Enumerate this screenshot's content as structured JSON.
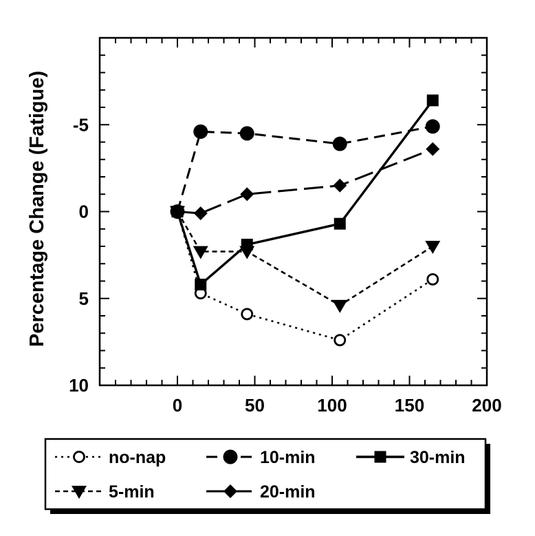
{
  "chart_data": {
    "type": "line",
    "title": "",
    "xlabel": "",
    "ylabel": "Percentage Change (Fatigue)",
    "xlim": [
      -45,
      200
    ],
    "ylim": [
      10,
      -10
    ],
    "y_inverted": true,
    "grid": false,
    "legend_position": "bottom",
    "x_ticks": [
      0,
      50,
      100,
      150,
      200
    ],
    "x_tick_labels": [
      "0",
      "50",
      "100",
      "150",
      "200"
    ],
    "y_ticks": [
      -5,
      0,
      5,
      10
    ],
    "y_tick_labels": [
      "-5",
      "0",
      "5",
      "10"
    ],
    "series": [
      {
        "name": "no-nap",
        "marker": "open-circle",
        "line": "dotted",
        "x": [
          0,
          15,
          45,
          105,
          165
        ],
        "y": [
          0,
          4.7,
          5.9,
          7.4,
          3.9
        ]
      },
      {
        "name": "10-min",
        "marker": "circle",
        "line": "dashed",
        "x": [
          0,
          15,
          45,
          105,
          165
        ],
        "y": [
          0,
          -4.6,
          -4.5,
          -3.9,
          -4.9
        ]
      },
      {
        "name": "30-min",
        "marker": "square",
        "line": "solid",
        "x": [
          0,
          15,
          45,
          105,
          165
        ],
        "y": [
          0,
          4.2,
          1.9,
          0.7,
          -6.4
        ]
      },
      {
        "name": "5-min",
        "marker": "triangle-down",
        "line": "short-dash",
        "x": [
          0,
          15,
          45,
          105,
          165
        ],
        "y": [
          0,
          2.3,
          2.3,
          5.4,
          2.0
        ]
      },
      {
        "name": "20-min",
        "marker": "diamond",
        "line": "long-dash",
        "x": [
          0,
          15,
          45,
          105,
          165
        ],
        "y": [
          0,
          0.1,
          -1.0,
          -1.5,
          -3.6
        ]
      }
    ]
  }
}
